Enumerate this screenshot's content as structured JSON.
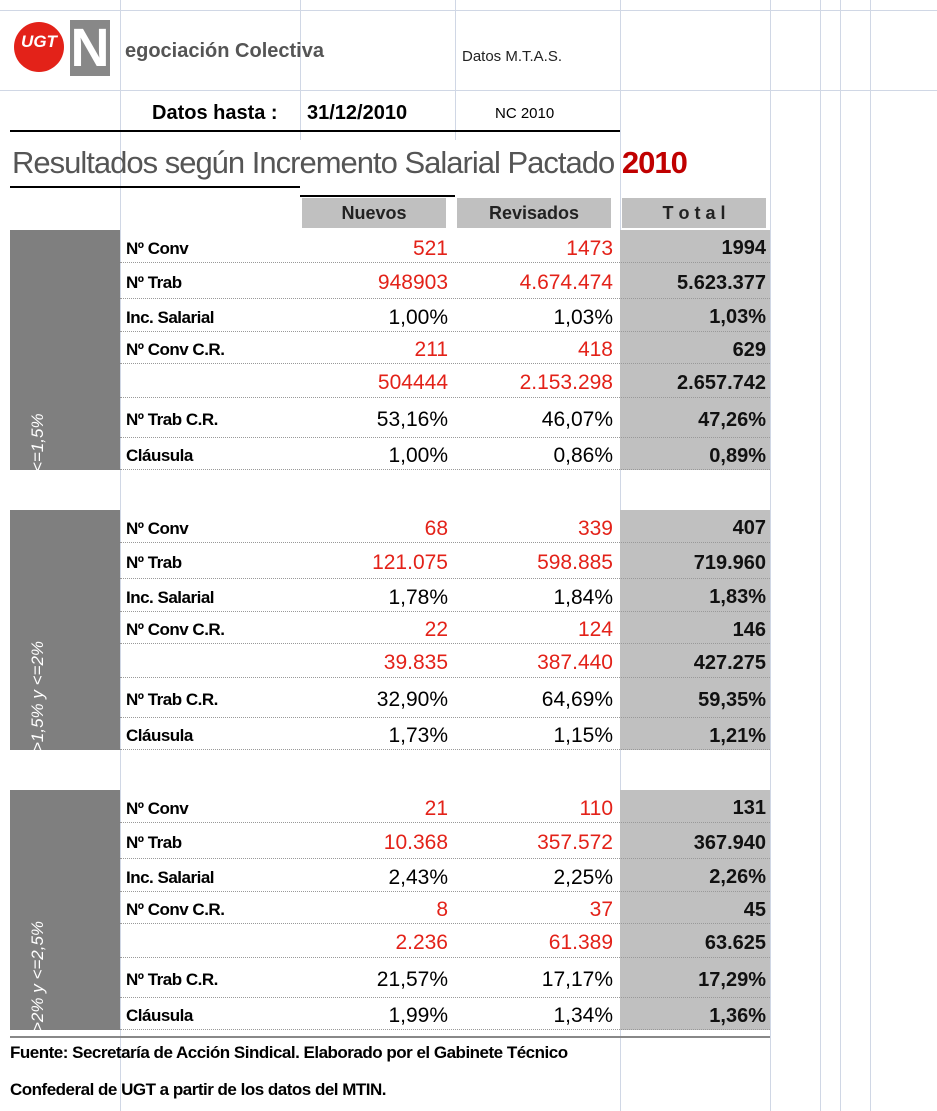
{
  "header": {
    "logo": "UGT",
    "initial": "N",
    "title": "egociación Colectiva",
    "source": "Datos M.T.A.S.",
    "date_label": "Datos hasta :",
    "date": "31/12/2010",
    "code": "NC 2010"
  },
  "title": {
    "text": "Resultados según Incremento Salarial Pactado",
    "year": "2010"
  },
  "columns": [
    "Nuevos",
    "Revisados",
    "T o t a l"
  ],
  "groups": [
    {
      "label": "<=1,5%",
      "rows": [
        {
          "label": "Nº Conv",
          "color": "#e32219",
          "nuevos": "521",
          "revisados": "1473",
          "total": "1994"
        },
        {
          "label": "Nº Trab",
          "color": "#e32219",
          "nuevos": "948903",
          "revisados": "4.674.474",
          "total": "5.623.377"
        },
        {
          "label": "Inc. Salarial",
          "color": "#000000",
          "nuevos": "1,00%",
          "revisados": "1,03%",
          "total": "1,03%"
        },
        {
          "label": "Nº Conv C.R.",
          "color": "#e32219",
          "nuevos": "211",
          "revisados": "418",
          "total": "629"
        },
        {
          "label": null,
          "color": "#e32219",
          "nuevos": "504444",
          "revisados": "2.153.298",
          "total": "2.657.742"
        },
        {
          "label": "Nº Trab C.R.",
          "color": "#000000",
          "nuevos": "53,16%",
          "revisados": "46,07%",
          "total": "47,26%"
        },
        {
          "label": "Cláusula",
          "color": "#000000",
          "nuevos": "1,00%",
          "revisados": "0,86%",
          "total": "0,89%"
        }
      ]
    },
    {
      "label": ">1,5% y <=2%",
      "rows": [
        {
          "label": "Nº Conv",
          "color": "#e32219",
          "nuevos": "68",
          "revisados": "339",
          "total": "407"
        },
        {
          "label": "Nº Trab",
          "color": "#e32219",
          "nuevos": "121.075",
          "revisados": "598.885",
          "total": "719.960"
        },
        {
          "label": "Inc. Salarial",
          "color": "#000000",
          "nuevos": "1,78%",
          "revisados": "1,84%",
          "total": "1,83%"
        },
        {
          "label": "Nº Conv C.R.",
          "color": "#e32219",
          "nuevos": "22",
          "revisados": "124",
          "total": "146"
        },
        {
          "label": null,
          "color": "#e32219",
          "nuevos": "39.835",
          "revisados": "387.440",
          "total": "427.275"
        },
        {
          "label": "Nº Trab C.R.",
          "color": "#000000",
          "nuevos": "32,90%",
          "revisados": "64,69%",
          "total": "59,35%"
        },
        {
          "label": "Cláusula",
          "color": "#000000",
          "nuevos": "1,73%",
          "revisados": "1,15%",
          "total": "1,21%"
        }
      ]
    },
    {
      "label": ">2% y <=2,5%",
      "rows": [
        {
          "label": "Nº Conv",
          "color": "#e32219",
          "nuevos": "21",
          "revisados": "110",
          "total": "131"
        },
        {
          "label": "Nº Trab",
          "color": "#e32219",
          "nuevos": "10.368",
          "revisados": "357.572",
          "total": "367.940"
        },
        {
          "label": "Inc. Salarial",
          "color": "#000000",
          "nuevos": "2,43%",
          "revisados": "2,25%",
          "total": "2,26%"
        },
        {
          "label": "Nº Conv C.R.",
          "color": "#e32219",
          "nuevos": "8",
          "revisados": "37",
          "total": "45"
        },
        {
          "label": null,
          "color": "#e32219",
          "nuevos": "2.236",
          "revisados": "61.389",
          "total": "63.625"
        },
        {
          "label": "Nº Trab C.R.",
          "color": "#000000",
          "nuevos": "21,57%",
          "revisados": "17,17%",
          "total": "17,29%"
        },
        {
          "label": "Cláusula",
          "color": "#000000",
          "nuevos": "1,99%",
          "revisados": "1,34%",
          "total": "1,36%"
        }
      ]
    }
  ],
  "footer": [
    "Fuente: Secretaría de Acción Sindical. Elaborado por el Gabinete Técnico",
    "Confederal de UGT a partir de los datos del MTIN."
  ]
}
